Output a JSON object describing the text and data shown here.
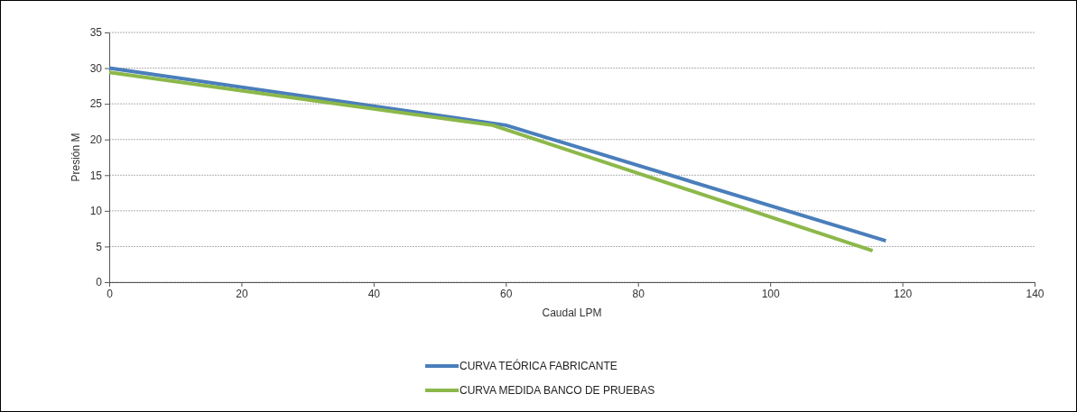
{
  "chart_data": {
    "type": "line",
    "xlabel": "Caudal LPM",
    "ylabel": "Presión M",
    "xlim": [
      0,
      140
    ],
    "xticks": [
      0,
      20,
      40,
      60,
      80,
      100,
      120,
      140
    ],
    "ylim": [
      0,
      35
    ],
    "yticks": [
      0,
      5,
      10,
      15,
      20,
      25,
      30,
      35
    ],
    "grid": "y",
    "legend": "bottom",
    "line_style": "solid",
    "marker": "none",
    "series": [
      {
        "name": "CURVA TEÓRICA FABRICANTE",
        "color": "#4a7ebb",
        "x": [
          0,
          60,
          117.5
        ],
        "values": [
          30,
          22,
          5.8
        ]
      },
      {
        "name": "CURVA MEDIDA BANCO DE PRUEBAS",
        "color": "#8cb84a",
        "x": [
          0,
          58,
          115.5
        ],
        "values": [
          29.4,
          22,
          4.4
        ]
      }
    ]
  }
}
